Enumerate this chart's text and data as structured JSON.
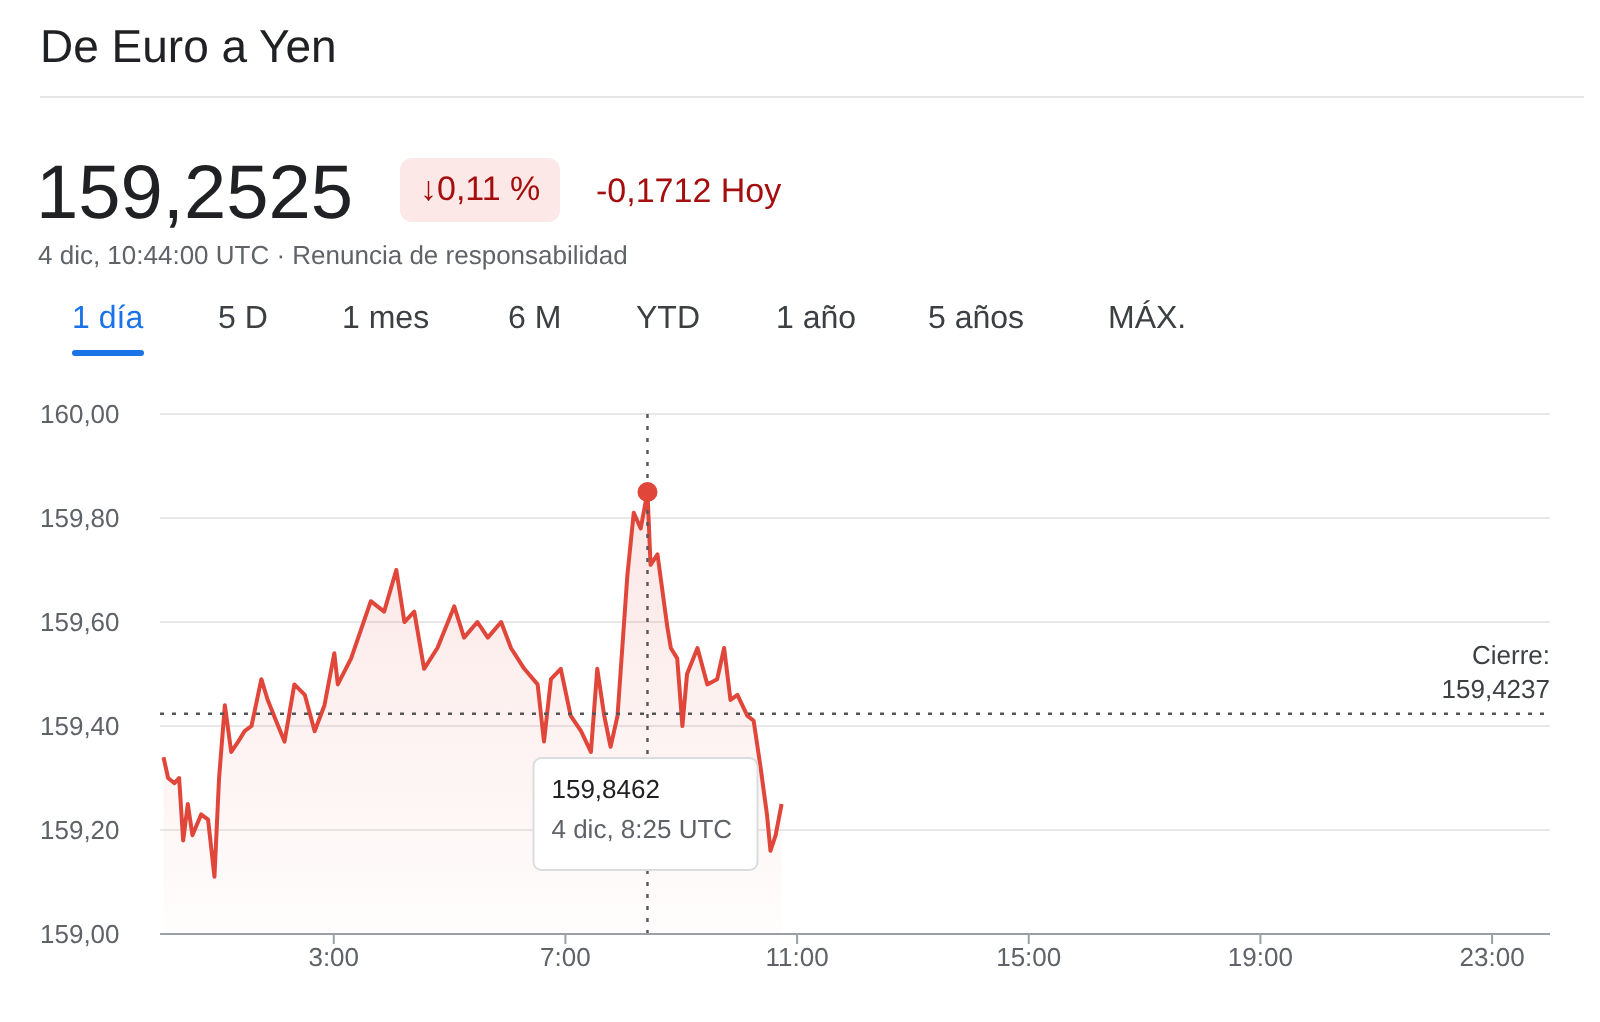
{
  "chart_data": {
    "type": "area",
    "title": "De Euro a Yen",
    "subtitle": "159,2525",
    "annotations": [
      "↓0,11 %",
      "-0,1712 Hoy",
      "4 dic, 10:44:00 UTC · Renuncia de responsabilidad",
      "1 día",
      "5 D",
      "1 mes",
      "6 M",
      "YTD",
      "1 año",
      "5 años",
      "MÁX.",
      "159,8462\n4 dic, 8:25 UTC"
    ],
    "x": [
      0.06,
      0.14,
      0.25,
      0.33,
      0.4,
      0.48,
      0.56,
      0.71,
      0.83,
      0.94,
      1.02,
      1.12,
      1.23,
      1.35,
      1.46,
      1.58,
      1.75,
      1.86,
      2.04,
      2.15,
      2.32,
      2.5,
      2.67,
      2.84,
      3.01,
      3.07,
      3.3,
      3.64,
      3.87,
      4.08,
      4.22,
      4.39,
      4.56,
      4.79,
      5.08,
      5.25,
      5.48,
      5.66,
      5.89,
      6.06,
      6.29,
      6.52,
      6.63,
      6.75,
      6.92,
      7.09,
      7.27,
      7.44,
      7.55,
      7.67,
      7.78,
      7.9,
      8.07,
      8.18,
      8.3,
      8.417,
      8.47,
      8.59,
      8.76,
      8.82,
      8.93,
      9.02,
      9.1,
      9.28,
      9.45,
      9.62,
      9.74,
      9.85,
      9.97,
      10.14,
      10.25,
      10.37,
      10.48,
      10.54,
      10.63,
      10.733
    ],
    "series": [
      {
        "color": "#e0463a",
        "values": [
          159.34,
          159.3,
          159.29,
          159.3,
          159.18,
          159.25,
          159.19,
          159.23,
          159.22,
          159.11,
          159.3,
          159.44,
          159.35,
          159.37,
          159.39,
          159.4,
          159.49,
          159.45,
          159.4,
          159.37,
          159.48,
          159.46,
          159.39,
          159.44,
          159.54,
          159.48,
          159.53,
          159.64,
          159.62,
          159.7,
          159.6,
          159.62,
          159.51,
          159.55,
          159.63,
          159.57,
          159.6,
          159.57,
          159.6,
          159.55,
          159.51,
          159.48,
          159.37,
          159.49,
          159.51,
          159.42,
          159.39,
          159.35,
          159.51,
          159.42,
          159.36,
          159.42,
          159.69,
          159.81,
          159.78,
          159.85,
          159.71,
          159.73,
          159.59,
          159.55,
          159.53,
          159.4,
          159.5,
          159.55,
          159.48,
          159.49,
          159.55,
          159.45,
          159.46,
          159.42,
          159.41,
          159.32,
          159.23,
          159.16,
          159.19,
          159.25
        ]
      }
    ],
    "xlim": [
      0,
      24
    ],
    "xticks": [
      {
        "value": 3,
        "label": "3:00"
      },
      {
        "value": 7,
        "label": "7:00"
      },
      {
        "value": 11,
        "label": "11:00"
      },
      {
        "value": 15,
        "label": "15:00"
      },
      {
        "value": 19,
        "label": "19:00"
      },
      {
        "value": 23,
        "label": "23:00"
      }
    ],
    "ylim": [
      159,
      160
    ],
    "yticks": [
      {
        "value": 159,
        "label": "159,00"
      },
      {
        "value": 159.2,
        "label": "159,20"
      },
      {
        "value": 159.4,
        "label": "159,40"
      },
      {
        "value": 159.6,
        "label": "159,60"
      },
      {
        "value": 159.8,
        "label": "159,80"
      },
      {
        "value": 160,
        "label": "160,00"
      }
    ],
    "grid": "y",
    "ref_lines": [
      {
        "axis": "y",
        "value": 159.4237,
        "label": "Cierre:\n159,4237",
        "color": "#555555",
        "line_style": "dotted"
      },
      {
        "axis": "x",
        "value": 8.417,
        "label": null,
        "color": "#555555",
        "line_style": "dotted"
      }
    ]
  }
}
